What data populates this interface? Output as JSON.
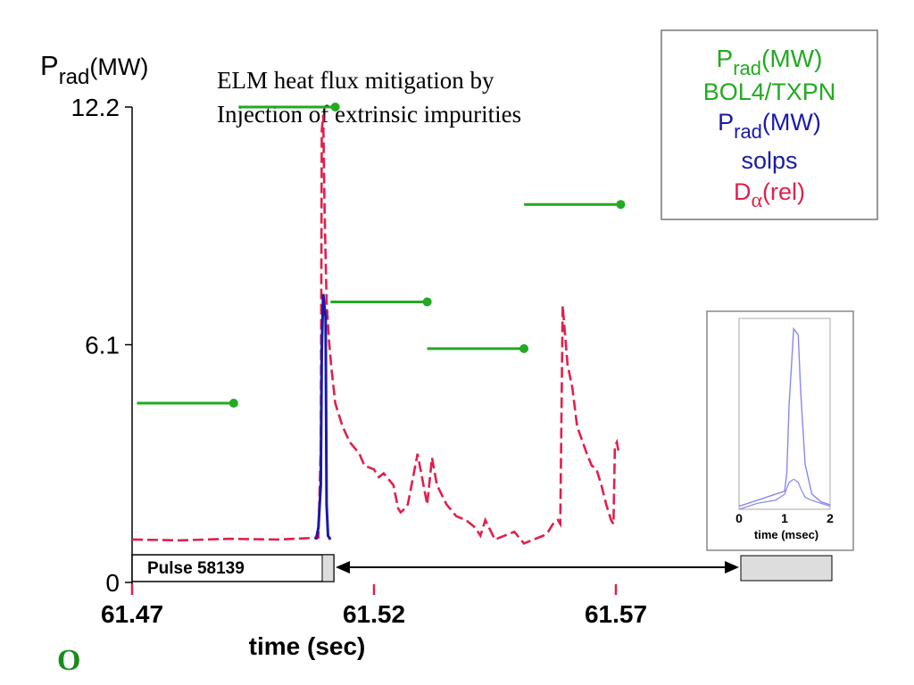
{
  "chart_data": {
    "type": "line",
    "ylabel_main": "P",
    "ylabel_sub": "rad",
    "ylabel_unit": "(MW)",
    "xlabel": "time (sec)",
    "title_line1": "ELM heat flux mitigation by",
    "title_line2": "Injection of extrinsic impurities",
    "x_ticks": [
      61.47,
      61.52,
      61.57
    ],
    "y_ticks": [
      0,
      6.1,
      12.2
    ],
    "x_tick_labels": [
      "61.47",
      "61.52",
      "61.57"
    ],
    "y_tick_labels": [
      "0",
      "6.1",
      "12.2"
    ],
    "xlim": [
      61.47,
      61.57
    ],
    "ylim": [
      0,
      12.2
    ],
    "pulse_label": "Pulse 58139",
    "corner_mark": "O",
    "legend": {
      "prad_main": "P",
      "prad_sub": "rad",
      "prad_unit": "(MW)",
      "bol": "BOL4/TXPN",
      "solps": "solps",
      "dalpha_main": "D",
      "dalpha_greek": "α",
      "dalpha_unit": "(rel)"
    },
    "colors": {
      "bol": "#22aa22",
      "solps": "#1a1aa8",
      "dalpha": "#e0204a",
      "inset": "#8888ee"
    },
    "series": [
      {
        "name": "BOL4/TXPN",
        "style": "step-segments",
        "segments": [
          {
            "x0": 61.471,
            "x1": 61.491,
            "y": 4.6
          },
          {
            "x0": 61.492,
            "x1": 61.512,
            "y": 12.2
          },
          {
            "x0": 61.511,
            "x1": 61.531,
            "y": 7.2
          },
          {
            "x0": 61.531,
            "x1": 61.551,
            "y": 6.0
          },
          {
            "x0": 61.551,
            "x1": 61.571,
            "y": 9.7
          }
        ]
      },
      {
        "name": "solps",
        "x": [
          61.508,
          61.5085,
          61.509,
          61.5092,
          61.5095,
          61.51,
          61.5102,
          61.5105,
          61.511
        ],
        "y": [
          1.1,
          1.4,
          2.5,
          6.0,
          7.4,
          6.8,
          2.0,
          1.2,
          1.1
        ]
      },
      {
        "name": "D-alpha (rel)",
        "x": [
          61.47,
          61.48,
          61.49,
          61.5,
          61.5085,
          61.509,
          61.5092,
          61.5095,
          61.5098,
          61.5102,
          61.5107,
          61.5112,
          61.512,
          61.5135,
          61.515,
          61.517,
          61.518,
          61.52,
          61.521,
          61.522,
          61.524,
          61.525,
          61.5255,
          61.526,
          61.527,
          61.529,
          61.531,
          61.532,
          61.533,
          61.535,
          61.537,
          61.539,
          61.541,
          61.542,
          61.543,
          61.545,
          61.547,
          61.549,
          61.551,
          61.553,
          61.555,
          61.556,
          61.557,
          61.558,
          61.5585,
          61.559,
          61.56,
          61.561,
          61.562,
          61.564,
          61.565,
          61.566,
          61.567,
          61.568,
          61.569,
          61.5695,
          61.5698,
          61.5702,
          61.5705,
          61.571
        ],
        "y": [
          1.1,
          1.08,
          1.12,
          1.1,
          1.15,
          3.5,
          11.6,
          12.0,
          9.5,
          7.2,
          6.2,
          5.5,
          4.6,
          4.0,
          3.6,
          3.3,
          3.0,
          2.9,
          2.7,
          2.8,
          2.5,
          1.9,
          1.8,
          1.85,
          2.0,
          3.3,
          2.0,
          3.2,
          2.5,
          2.0,
          1.7,
          1.6,
          1.4,
          1.2,
          1.6,
          1.1,
          1.2,
          1.3,
          1.0,
          1.1,
          1.2,
          1.3,
          1.5,
          1.6,
          1.5,
          7.1,
          5.6,
          5.0,
          4.0,
          3.3,
          3.0,
          2.9,
          2.5,
          2.0,
          1.6,
          1.5,
          3.5,
          3.6,
          3.4,
          3.3
        ]
      }
    ],
    "inset": {
      "xlabel": "time (msec)",
      "x_tick_labels": [
        "0",
        "1",
        "2"
      ],
      "x": [
        0.0,
        0.4,
        0.8,
        1.0,
        1.05,
        1.1,
        1.2,
        1.3,
        1.35,
        1.45,
        1.6,
        1.8,
        2.0
      ],
      "y_main": [
        0.1,
        0.3,
        0.5,
        0.6,
        1.2,
        3.5,
        6.0,
        5.8,
        4.0,
        1.5,
        0.5,
        0.25,
        0.15
      ],
      "y_secondary": [
        0.0,
        0.2,
        0.3,
        0.5,
        0.7,
        0.9,
        1.0,
        0.9,
        0.7,
        0.4,
        0.3,
        0.2,
        0.1
      ]
    }
  }
}
